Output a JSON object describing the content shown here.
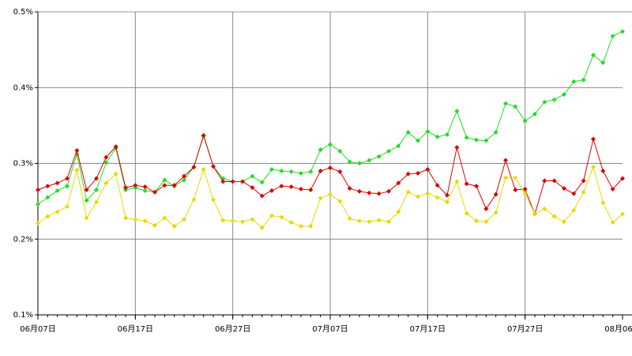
{
  "chart_data": {
    "type": "line",
    "categories": [
      "06月07日",
      null,
      null,
      null,
      null,
      null,
      null,
      null,
      null,
      null,
      "06月17日",
      null,
      null,
      null,
      null,
      null,
      null,
      null,
      null,
      null,
      "06月27日",
      null,
      null,
      null,
      null,
      null,
      null,
      null,
      null,
      null,
      "07月07日",
      null,
      null,
      null,
      null,
      null,
      null,
      null,
      null,
      null,
      "07月17日",
      null,
      null,
      null,
      null,
      null,
      null,
      null,
      null,
      null,
      "07月27日",
      null,
      null,
      null,
      null,
      null,
      null,
      null,
      null,
      null,
      "08月06日"
    ],
    "series": [
      {
        "color": "#22dd22",
        "values": [
          0.246,
          0.255,
          0.264,
          0.27,
          0.312,
          0.251,
          0.265,
          0.301,
          0.32,
          0.265,
          0.268,
          0.264,
          0.262,
          0.278,
          0.27,
          0.278,
          0.295,
          0.336,
          0.296,
          0.28,
          0.276,
          0.276,
          0.283,
          0.275,
          0.292,
          0.29,
          0.289,
          0.287,
          0.289,
          0.318,
          0.325,
          0.316,
          0.302,
          0.3,
          0.304,
          0.309,
          0.316,
          0.323,
          0.341,
          0.33,
          0.342,
          0.335,
          0.338,
          0.369,
          0.334,
          0.331,
          0.33,
          0.341,
          0.379,
          0.375,
          0.356,
          0.365,
          0.381,
          0.384,
          0.391,
          0.408,
          0.41,
          0.443,
          0.433,
          0.468,
          0.474
        ]
      },
      {
        "color": "#dd0000",
        "values": [
          0.265,
          0.27,
          0.274,
          0.28,
          0.317,
          0.265,
          0.28,
          0.308,
          0.322,
          0.268,
          0.271,
          0.269,
          0.262,
          0.271,
          0.271,
          0.283,
          0.295,
          0.337,
          0.296,
          0.276,
          0.276,
          0.276,
          0.268,
          0.257,
          0.264,
          0.27,
          0.269,
          0.266,
          0.265,
          0.29,
          0.294,
          0.289,
          0.267,
          0.263,
          0.261,
          0.26,
          0.263,
          0.274,
          0.286,
          0.287,
          0.292,
          0.271,
          0.258,
          0.321,
          0.273,
          0.27,
          0.24,
          0.259,
          0.304,
          0.265,
          0.266,
          0.233,
          0.277,
          0.277,
          0.267,
          0.26,
          0.277,
          0.332,
          0.29,
          0.266,
          0.28
        ]
      },
      {
        "color": "#e8d800",
        "values": [
          0.221,
          0.23,
          0.236,
          0.243,
          0.291,
          0.228,
          0.249,
          0.274,
          0.286,
          0.228,
          0.226,
          0.224,
          0.218,
          0.228,
          0.217,
          0.226,
          0.252,
          0.292,
          0.252,
          0.225,
          0.224,
          0.223,
          0.226,
          0.215,
          0.231,
          0.229,
          0.222,
          0.217,
          0.217,
          0.254,
          0.259,
          0.25,
          0.227,
          0.224,
          0.223,
          0.225,
          0.223,
          0.236,
          0.262,
          0.256,
          0.26,
          0.255,
          0.249,
          0.276,
          0.234,
          0.224,
          0.223,
          0.235,
          0.281,
          0.281,
          0.26,
          0.233,
          0.24,
          0.23,
          0.223,
          0.238,
          0.262,
          0.295,
          0.248,
          0.222,
          0.233
        ]
      }
    ],
    "ylim": [
      0.1,
      0.5
    ],
    "yticks": [
      {
        "value": 0.1,
        "label": "0.1%"
      },
      {
        "value": 0.2,
        "label": "0.2%"
      },
      {
        "value": 0.3,
        "label": "0.3%"
      },
      {
        "value": 0.4,
        "label": "0.4%"
      },
      {
        "value": 0.5,
        "label": "0.5%"
      }
    ],
    "grid": true
  }
}
